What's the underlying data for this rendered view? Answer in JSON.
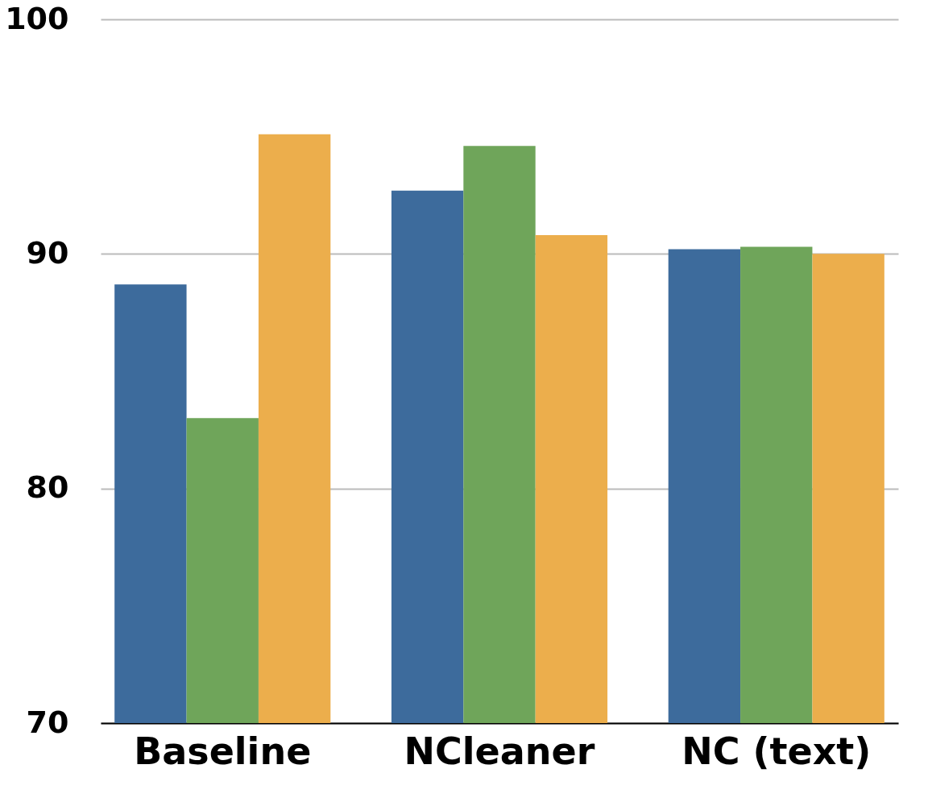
{
  "chart_data": {
    "type": "bar",
    "categories": [
      "Baseline",
      "NCleaner",
      "NC (text)"
    ],
    "series": [
      {
        "color": "#3d6b9c",
        "values": [
          88.7,
          92.7,
          90.2
        ]
      },
      {
        "color": "#6fa55a",
        "values": [
          83.0,
          94.6,
          90.3
        ]
      },
      {
        "color": "#ecae4c",
        "values": [
          95.1,
          90.8,
          90.0
        ]
      }
    ],
    "ylim": [
      70,
      100
    ],
    "yticks": [
      70,
      80,
      90,
      100
    ],
    "grid": "y",
    "legend": false
  }
}
